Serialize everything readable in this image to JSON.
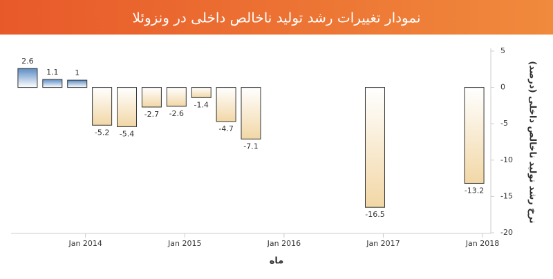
{
  "chart_data": {
    "type": "bar",
    "title": "نمودار تغییرات رشد تولید ناخالص داخلی در ونزوئلا",
    "y_label": "نرخ رشد تولید ناخالص داخلی (درصد)",
    "x_label": "ماه",
    "x": [
      "2013-06",
      "2013-09",
      "2013-12",
      "2014-03",
      "2014-06",
      "2014-09",
      "2014-12",
      "2015-03",
      "2015-06",
      "2015-09",
      "2016-12",
      "2017-12"
    ],
    "values": [
      2.6,
      1.1,
      1,
      -5.2,
      -5.4,
      -2.7,
      -2.6,
      -1.4,
      -4.7,
      -7.1,
      -16.5,
      -13.2
    ],
    "colors": {
      "positive": "#5b8cc4",
      "negative": "#f2d7a6"
    },
    "xlim": [
      "2013-04",
      "2018-02"
    ],
    "xticks": [
      {
        "value": "2014-01",
        "label": "Jan 2014"
      },
      {
        "value": "2015-01",
        "label": "Jan 2015"
      },
      {
        "value": "2016-01",
        "label": "Jan 2016"
      },
      {
        "value": "2017-01",
        "label": "Jan 2017"
      },
      {
        "value": "2018-01",
        "label": "Jan 2018"
      }
    ],
    "ylim": [
      -20,
      5
    ],
    "yticks": [
      -20,
      -15,
      -10,
      -5,
      0,
      5
    ]
  }
}
